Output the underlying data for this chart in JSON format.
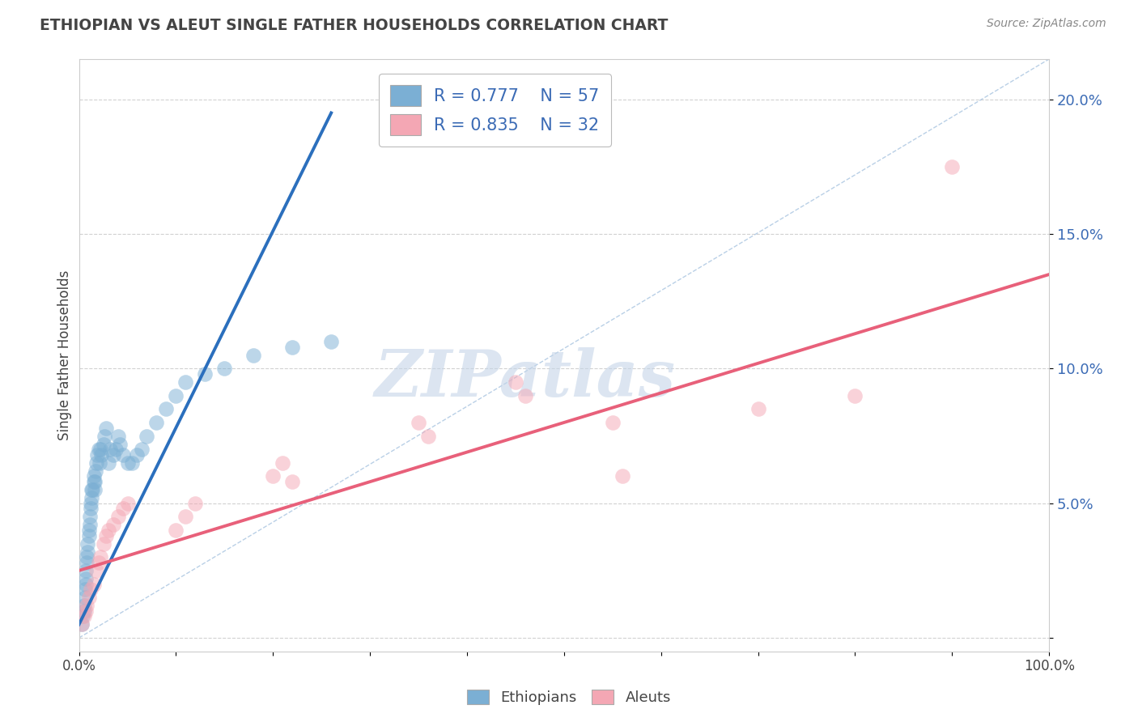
{
  "title": "ETHIOPIAN VS ALEUT SINGLE FATHER HOUSEHOLDS CORRELATION CHART",
  "source_text": "Source: ZipAtlas.com",
  "ylabel": "Single Father Households",
  "xlabel": "",
  "xlim": [
    0.0,
    1.0
  ],
  "ylim": [
    -0.005,
    0.215
  ],
  "yticks": [
    0.0,
    0.05,
    0.1,
    0.15,
    0.2
  ],
  "ytick_labels": [
    "",
    "5.0%",
    "10.0%",
    "15.0%",
    "20.0%"
  ],
  "xtick_positions": [
    0.0,
    0.1,
    0.2,
    0.3,
    0.4,
    0.5,
    0.6,
    0.7,
    0.8,
    0.9,
    1.0
  ],
  "xtick_labels": [
    "0.0%",
    "",
    "",
    "",
    "",
    "",
    "",
    "",
    "",
    "",
    "100.0%"
  ],
  "legend_r1": "R = 0.777",
  "legend_n1": "N = 57",
  "legend_r2": "R = 0.835",
  "legend_n2": "N = 32",
  "blue_color": "#7BAFD4",
  "pink_color": "#F4A7B4",
  "blue_line_color": "#2B6FBD",
  "pink_line_color": "#E8607A",
  "r_n_color": "#3B6BB5",
  "title_color": "#444444",
  "watermark_text": "ZIPatlas",
  "watermark_color": "#C5D5E8",
  "blue_scatter_x": [
    0.003,
    0.004,
    0.005,
    0.005,
    0.006,
    0.006,
    0.007,
    0.007,
    0.007,
    0.008,
    0.008,
    0.009,
    0.009,
    0.01,
    0.01,
    0.011,
    0.011,
    0.012,
    0.012,
    0.013,
    0.013,
    0.014,
    0.015,
    0.015,
    0.016,
    0.016,
    0.017,
    0.018,
    0.019,
    0.02,
    0.021,
    0.022,
    0.023,
    0.025,
    0.026,
    0.028,
    0.03,
    0.032,
    0.035,
    0.038,
    0.04,
    0.042,
    0.045,
    0.05,
    0.055,
    0.06,
    0.065,
    0.07,
    0.08,
    0.09,
    0.1,
    0.11,
    0.13,
    0.15,
    0.18,
    0.22,
    0.26
  ],
  "blue_scatter_y": [
    0.005,
    0.008,
    0.01,
    0.012,
    0.015,
    0.018,
    0.02,
    0.022,
    0.025,
    0.028,
    0.03,
    0.032,
    0.035,
    0.038,
    0.04,
    0.042,
    0.045,
    0.048,
    0.05,
    0.052,
    0.055,
    0.055,
    0.058,
    0.06,
    0.055,
    0.058,
    0.062,
    0.065,
    0.068,
    0.07,
    0.065,
    0.07,
    0.068,
    0.072,
    0.075,
    0.078,
    0.065,
    0.07,
    0.068,
    0.07,
    0.075,
    0.072,
    0.068,
    0.065,
    0.065,
    0.068,
    0.07,
    0.075,
    0.08,
    0.085,
    0.09,
    0.095,
    0.098,
    0.1,
    0.105,
    0.108,
    0.11
  ],
  "pink_scatter_x": [
    0.003,
    0.005,
    0.007,
    0.008,
    0.01,
    0.012,
    0.015,
    0.018,
    0.02,
    0.022,
    0.025,
    0.028,
    0.03,
    0.035,
    0.04,
    0.045,
    0.05,
    0.1,
    0.11,
    0.12,
    0.2,
    0.21,
    0.22,
    0.35,
    0.36,
    0.45,
    0.46,
    0.55,
    0.56,
    0.7,
    0.8,
    0.9
  ],
  "pink_scatter_y": [
    0.005,
    0.008,
    0.01,
    0.012,
    0.015,
    0.018,
    0.02,
    0.025,
    0.028,
    0.03,
    0.035,
    0.038,
    0.04,
    0.042,
    0.045,
    0.048,
    0.05,
    0.04,
    0.045,
    0.05,
    0.06,
    0.065,
    0.058,
    0.08,
    0.075,
    0.095,
    0.09,
    0.08,
    0.06,
    0.085,
    0.09,
    0.175
  ],
  "blue_line_x": [
    0.0,
    0.26
  ],
  "blue_line_y": [
    0.005,
    0.195
  ],
  "pink_line_x": [
    0.0,
    1.0
  ],
  "pink_line_y": [
    0.025,
    0.135
  ],
  "diag_line_x": [
    0.0,
    1.0
  ],
  "diag_line_y": [
    0.0,
    0.215
  ],
  "grid_color": "#CCCCCC",
  "background_color": "#FFFFFF"
}
